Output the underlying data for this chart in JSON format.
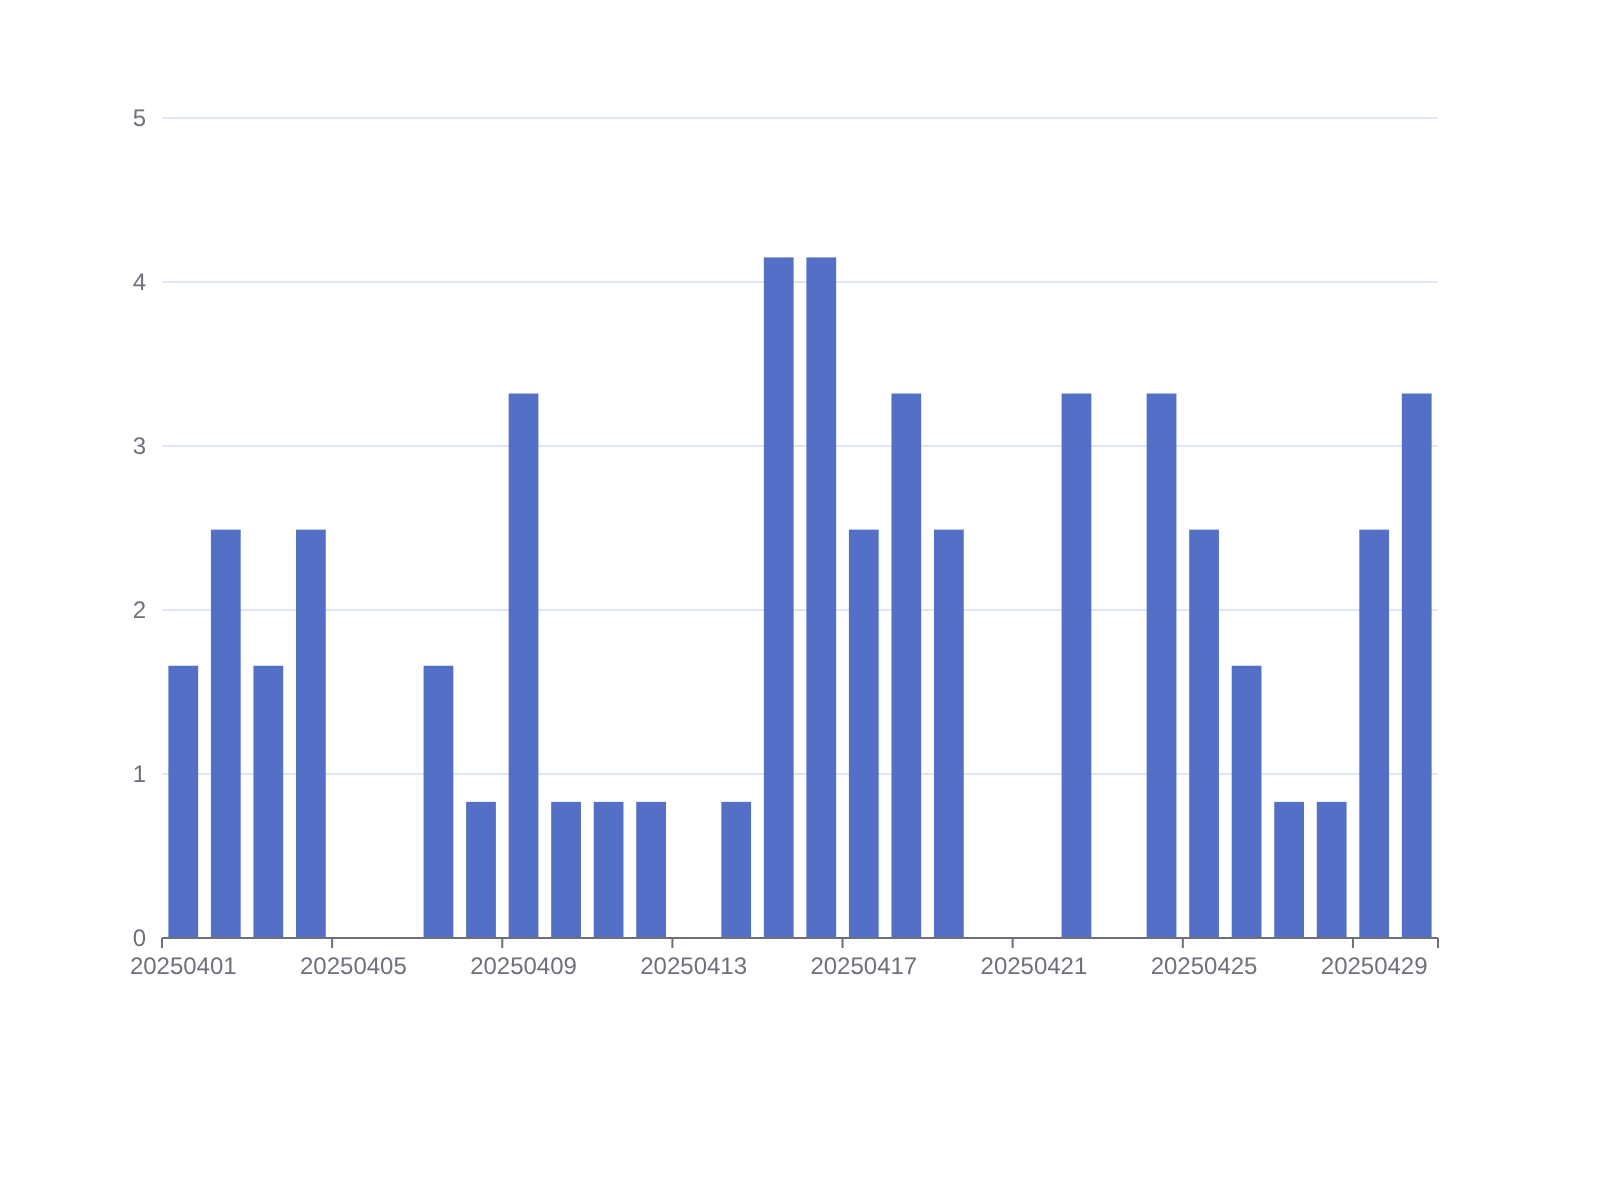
{
  "chart_data": {
    "type": "bar",
    "categories": [
      "20250401",
      null,
      null,
      null,
      "20250405",
      null,
      null,
      null,
      "20250409",
      null,
      null,
      null,
      "20250413",
      null,
      null,
      null,
      "20250417",
      null,
      null,
      null,
      "20250421",
      null,
      null,
      null,
      "20250425",
      null,
      null,
      null,
      "20250429",
      null
    ],
    "values": [
      1.66,
      2.49,
      1.66,
      2.49,
      0,
      0,
      1.66,
      0.83,
      3.32,
      0.83,
      0.83,
      0.83,
      0,
      0.83,
      4.15,
      4.15,
      2.49,
      3.32,
      2.49,
      0,
      0,
      3.32,
      0,
      3.32,
      2.49,
      1.66,
      0.83,
      0.83,
      2.49,
      3.32
    ],
    "color": "#5470c6",
    "ylim": [
      0,
      5
    ],
    "yticks": [
      0,
      1,
      2,
      3,
      4,
      5
    ],
    "grid": "y"
  }
}
